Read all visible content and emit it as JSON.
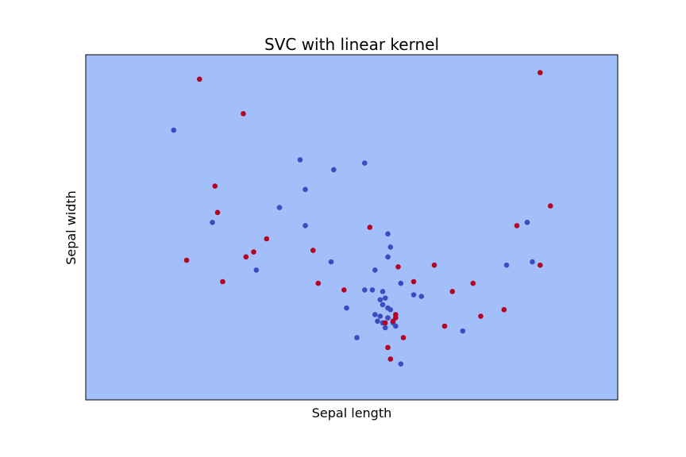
{
  "chart_data": {
    "type": "scatter",
    "title": "SVC with linear kernel",
    "xlabel": "Sepal length",
    "ylabel": "Sepal width",
    "xlim": [
      -1,
      1
    ],
    "ylim": [
      -1,
      1
    ],
    "xticks": [],
    "yticks": [],
    "grid": false,
    "legend": "none",
    "decision_region_color": "#a3bffa",
    "series": [
      {
        "color": "#3b4cc0",
        "points": [
          [
            -0.69,
            0.59
          ],
          [
            -0.54,
            0.03
          ],
          [
            -0.37,
            -0.26
          ],
          [
            -0.28,
            0.12
          ],
          [
            -0.2,
            0.41
          ],
          [
            -0.18,
            0.23
          ],
          [
            -0.18,
            0.01
          ],
          [
            -0.07,
            0.35
          ],
          [
            -0.08,
            -0.21
          ],
          [
            -0.02,
            -0.49
          ],
          [
            0.02,
            -0.67
          ],
          [
            0.05,
            0.39
          ],
          [
            0.05,
            -0.38
          ],
          [
            0.08,
            -0.38
          ],
          [
            0.09,
            -0.26
          ],
          [
            0.09,
            -0.53
          ],
          [
            0.1,
            -0.57
          ],
          [
            0.11,
            -0.44
          ],
          [
            0.12,
            -0.47
          ],
          [
            0.11,
            -0.54
          ],
          [
            0.12,
            -0.39
          ],
          [
            0.13,
            -0.43
          ],
          [
            0.14,
            -0.55
          ],
          [
            0.12,
            -0.58
          ],
          [
            0.13,
            -0.61
          ],
          [
            0.14,
            -0.49
          ],
          [
            0.14,
            -0.04
          ],
          [
            0.14,
            -0.18
          ],
          [
            0.15,
            -0.12
          ],
          [
            0.15,
            -0.5
          ],
          [
            0.16,
            -0.58
          ],
          [
            0.17,
            -0.6
          ],
          [
            0.19,
            -0.83
          ],
          [
            0.19,
            -0.34
          ],
          [
            0.24,
            -0.41
          ],
          [
            0.27,
            -0.42
          ],
          [
            0.43,
            -0.63
          ],
          [
            0.6,
            -0.23
          ],
          [
            0.68,
            0.03
          ],
          [
            0.7,
            -0.21
          ]
        ]
      },
      {
        "color": "#b40426",
        "points": [
          [
            -0.59,
            0.9
          ],
          [
            -0.64,
            -0.2
          ],
          [
            -0.53,
            0.25
          ],
          [
            -0.52,
            0.09
          ],
          [
            -0.5,
            -0.33
          ],
          [
            -0.42,
            0.69
          ],
          [
            -0.41,
            -0.18
          ],
          [
            -0.38,
            -0.15
          ],
          [
            -0.33,
            -0.07
          ],
          [
            -0.15,
            -0.14
          ],
          [
            -0.13,
            -0.34
          ],
          [
            -0.03,
            -0.38
          ],
          [
            0.07,
            0.0
          ],
          [
            0.13,
            -0.58
          ],
          [
            0.14,
            -0.73
          ],
          [
            0.15,
            -0.8
          ],
          [
            0.16,
            -0.57
          ],
          [
            0.17,
            -0.53
          ],
          [
            0.17,
            -0.55
          ],
          [
            0.18,
            -0.24
          ],
          [
            0.2,
            -0.67
          ],
          [
            0.24,
            -0.33
          ],
          [
            0.32,
            -0.23
          ],
          [
            0.36,
            -0.6
          ],
          [
            0.39,
            -0.39
          ],
          [
            0.47,
            -0.34
          ],
          [
            0.5,
            -0.54
          ],
          [
            0.59,
            -0.5
          ],
          [
            0.64,
            0.01
          ],
          [
            0.73,
            0.94
          ],
          [
            0.73,
            -0.23
          ],
          [
            0.77,
            0.13
          ]
        ]
      }
    ]
  }
}
